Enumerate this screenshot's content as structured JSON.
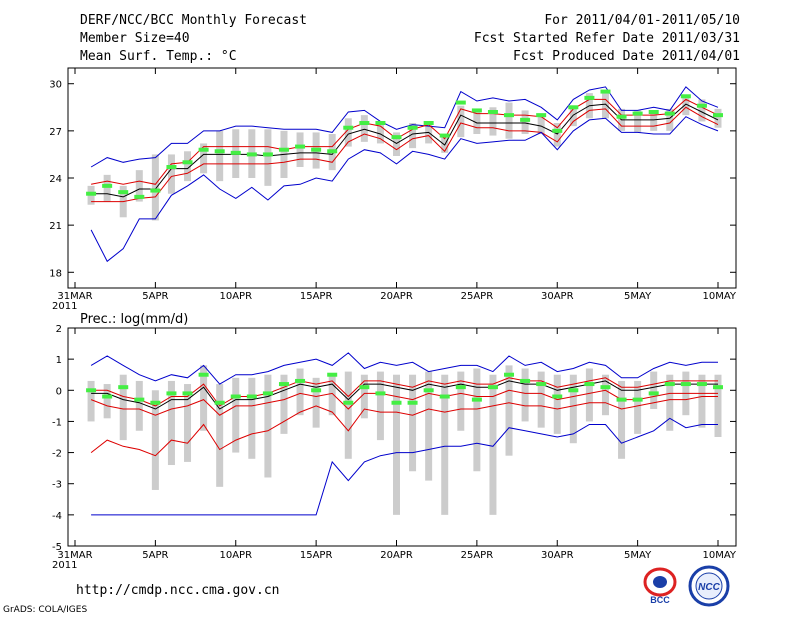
{
  "header": {
    "title": "DERF/NCC/BCC Monthly Forecast",
    "member_size": "Member Size=40",
    "variable": "Mean Surf. Temp.: °C",
    "period": "For 2011/04/01-2011/05/10",
    "started": "Fcst Started Refer Date 2011/03/31",
    "produced": "Fcst Produced Date 2011/04/01"
  },
  "footer": {
    "url": "http://cmdp.ncc.cma.gov.cn",
    "credit": "GrADS: COLA/IGES",
    "logo_bcc": "BCC",
    "logo_ncc": "NCC"
  },
  "chart_data": [
    {
      "type": "line",
      "title": "Mean Surf. Temp.: °C",
      "xlabel": "",
      "ylabel": "",
      "year_label": "2011",
      "ylim": [
        17,
        31
      ],
      "y_ticks": [
        18,
        21,
        24,
        27,
        30
      ],
      "x_tick_days": [
        0,
        5,
        10,
        15,
        20,
        25,
        30,
        35,
        40
      ],
      "x_tick_labels": [
        "31MAR",
        "5APR",
        "10APR",
        "15APR",
        "20APR",
        "25APR",
        "30APR",
        "5MAY",
        "10MAY"
      ],
      "days": [
        1,
        2,
        3,
        4,
        5,
        6,
        7,
        8,
        9,
        10,
        11,
        12,
        13,
        14,
        15,
        16,
        17,
        18,
        19,
        20,
        21,
        22,
        23,
        24,
        25,
        26,
        27,
        28,
        29,
        30,
        31,
        32,
        33,
        34,
        35,
        36,
        37,
        38,
        39,
        40
      ],
      "series": [
        {
          "name": "ensemble max",
          "color": "#0000cc",
          "values": [
            24.7,
            25.3,
            25,
            25.2,
            25.3,
            26.2,
            26.2,
            27,
            27,
            27.3,
            27.3,
            27.2,
            27.1,
            27.1,
            27.1,
            26.9,
            28.2,
            28.3,
            27.6,
            27.1,
            27.4,
            27.3,
            27.2,
            29.5,
            28.9,
            29.1,
            28.9,
            29,
            28.5,
            27.7,
            29,
            29.6,
            29.8,
            28.3,
            28.3,
            28.5,
            28.3,
            29.8,
            28.9,
            28.5
          ]
        },
        {
          "name": "upper spread",
          "color": "#dd0000",
          "values": [
            23.6,
            23.8,
            23.6,
            23.8,
            23.6,
            24.9,
            25,
            26,
            26,
            26,
            26,
            26,
            25.8,
            26,
            26,
            26,
            27.1,
            27.5,
            27.3,
            26.5,
            27.1,
            27.4,
            26.5,
            28.4,
            28.1,
            28.1,
            28,
            28,
            27.9,
            27.2,
            28.4,
            29,
            29,
            28,
            28,
            28,
            28.1,
            29,
            28.5,
            28
          ]
        },
        {
          "name": "ensemble mean",
          "color": "#000000",
          "values": [
            23,
            23,
            22.8,
            23.3,
            23.3,
            24.6,
            24.6,
            25.5,
            25.5,
            25.5,
            25.5,
            25.4,
            25.5,
            25.6,
            25.6,
            25.5,
            26.8,
            27.1,
            26.8,
            26.2,
            26.8,
            26.9,
            26.1,
            28,
            27.5,
            27.5,
            27.5,
            27.5,
            27.3,
            26.8,
            28,
            28.6,
            28.7,
            27.7,
            27.7,
            27.7,
            27.8,
            28.7,
            28.2,
            27.7
          ]
        },
        {
          "name": "lower spread",
          "color": "#dd0000",
          "values": [
            22.5,
            22.5,
            22.5,
            22.7,
            22.8,
            24.1,
            24.3,
            24.9,
            24.9,
            24.9,
            24.9,
            24.9,
            25,
            25.2,
            25.2,
            25,
            26.3,
            26.8,
            26.5,
            25.8,
            26.5,
            26.7,
            25.7,
            27.5,
            27.2,
            27.2,
            27,
            27,
            26.9,
            26.3,
            27.6,
            28.3,
            28.4,
            27.3,
            27.3,
            27.3,
            27.5,
            28.5,
            27.9,
            27.4
          ]
        },
        {
          "name": "ensemble min",
          "color": "#0000cc",
          "values": [
            20.7,
            18.7,
            19.5,
            21.4,
            21.4,
            22.9,
            23.5,
            24.2,
            23.3,
            22.7,
            23.4,
            22.6,
            23.5,
            23.6,
            24,
            23.8,
            25.2,
            25.8,
            25.6,
            24.9,
            25.7,
            25.5,
            25.2,
            26.5,
            26.2,
            26.3,
            26.4,
            26.4,
            26.9,
            25.8,
            27,
            27.7,
            27.8,
            26.9,
            26.9,
            26.8,
            26.8,
            27.9,
            27.4,
            27
          ]
        }
      ],
      "bars": {
        "name": "member spread",
        "color": "#cccccc",
        "low": [
          22.3,
          22.5,
          21.5,
          22.5,
          21.3,
          23,
          23.8,
          24.3,
          23.8,
          24,
          24,
          23.5,
          24,
          24.7,
          24.6,
          24.5,
          26,
          26.3,
          26.2,
          25.4,
          25.9,
          26.2,
          25.6,
          26.6,
          26.8,
          26.7,
          26.5,
          26.8,
          26.8,
          26,
          27.3,
          27.8,
          27.8,
          27,
          26.9,
          27,
          27,
          28,
          27.6,
          27.2
        ],
        "high": [
          23.5,
          24.2,
          23.5,
          24.5,
          25.5,
          25.5,
          25.7,
          26.2,
          27,
          27.1,
          27.1,
          27.1,
          27,
          26.9,
          26.9,
          26.8,
          27.8,
          28,
          27.4,
          26.9,
          27.5,
          27.6,
          26.8,
          28.6,
          28.4,
          28.5,
          28.8,
          28.3,
          28.1,
          27.5,
          28.5,
          29.4,
          29.4,
          28.4,
          28.3,
          28.3,
          28.4,
          29.3,
          29,
          28.4
        ]
      },
      "observed": {
        "name": "observed",
        "color": "#44ee44",
        "values": [
          23,
          23.5,
          23.1,
          22.8,
          23.2,
          24.7,
          25,
          25.8,
          25.7,
          25.6,
          25.5,
          25.5,
          25.8,
          26,
          25.8,
          25.7,
          27.2,
          27.5,
          27.5,
          26.6,
          27.2,
          27.5,
          26.7,
          28.8,
          28.3,
          28.2,
          28,
          27.7,
          28,
          27,
          28.5,
          29.1,
          29.5,
          27.9,
          28.1,
          28.2,
          28.1,
          29.2,
          28.6,
          28
        ]
      }
    },
    {
      "type": "line",
      "title": "Prec.: log(mm/d)",
      "xlabel": "",
      "ylabel": "",
      "year_label": "2011",
      "ylim": [
        -5,
        2
      ],
      "y_ticks": [
        -5,
        -4,
        -3,
        -2,
        -1,
        0,
        1,
        2
      ],
      "x_tick_days": [
        0,
        5,
        10,
        15,
        20,
        25,
        30,
        35,
        40
      ],
      "x_tick_labels": [
        "31MAR",
        "5APR",
        "10APR",
        "15APR",
        "20APR",
        "25APR",
        "30APR",
        "5MAY",
        "10MAY"
      ],
      "days": [
        1,
        2,
        3,
        4,
        5,
        6,
        7,
        8,
        9,
        10,
        11,
        12,
        13,
        14,
        15,
        16,
        17,
        18,
        19,
        20,
        21,
        22,
        23,
        24,
        25,
        26,
        27,
        28,
        29,
        30,
        31,
        32,
        33,
        34,
        35,
        36,
        37,
        38,
        39,
        40
      ],
      "series": [
        {
          "name": "ensemble max",
          "color": "#0000cc",
          "values": [
            0.8,
            1.1,
            0.8,
            0.5,
            0.3,
            0.5,
            0.4,
            0.8,
            0.2,
            0.5,
            0.5,
            0.6,
            0.8,
            0.9,
            1,
            0.8,
            1.2,
            0.7,
            0.9,
            0.8,
            0.9,
            0.6,
            0.7,
            0.8,
            0.8,
            0.6,
            1.1,
            0.8,
            0.9,
            0.6,
            0.7,
            0.9,
            0.8,
            0.4,
            0.4,
            0.7,
            0.9,
            0.8,
            0.9,
            0.9
          ]
        },
        {
          "name": "upper spread",
          "color": "#dd0000",
          "values": [
            0,
            0,
            -0.2,
            -0.3,
            -0.5,
            -0.2,
            -0.2,
            0.2,
            -0.5,
            -0.2,
            -0.2,
            -0.1,
            0.1,
            0.3,
            0.2,
            0.3,
            -0.2,
            0.3,
            0.3,
            0.2,
            0.1,
            0.3,
            0.2,
            0.3,
            0.2,
            0.2,
            0.4,
            0.3,
            0.3,
            0.1,
            0.2,
            0.3,
            0.4,
            0.1,
            0.1,
            0.2,
            0.3,
            0.3,
            0.3,
            0.3
          ]
        },
        {
          "name": "ensemble mean",
          "color": "#000000",
          "values": [
            -0.1,
            -0.1,
            -0.3,
            -0.4,
            -0.6,
            -0.3,
            -0.3,
            0.1,
            -0.6,
            -0.3,
            -0.3,
            -0.2,
            0,
            0.2,
            0.1,
            0.2,
            -0.3,
            0.2,
            0.2,
            0.1,
            0,
            0.2,
            0.1,
            0.2,
            0.1,
            0.1,
            0.3,
            0.2,
            0.2,
            0,
            0.1,
            0.2,
            0.3,
            0,
            0,
            0.1,
            0.2,
            0.2,
            0.2,
            0.2
          ]
        },
        {
          "name": "lower spread",
          "color": "#dd0000",
          "values": [
            -0.3,
            -0.5,
            -0.6,
            -0.6,
            -0.8,
            -0.6,
            -0.5,
            -0.3,
            -0.8,
            -0.5,
            -0.5,
            -0.4,
            -0.3,
            -0.1,
            -0.2,
            -0.1,
            -0.6,
            -0.1,
            -0.1,
            -0.2,
            -0.3,
            -0.1,
            -0.2,
            -0.1,
            -0.2,
            -0.2,
            0,
            -0.1,
            -0.1,
            -0.3,
            -0.2,
            -0.1,
            0,
            -0.3,
            -0.3,
            -0.2,
            -0.1,
            -0.1,
            -0.1,
            -0.1
          ]
        },
        {
          "name": "lower band",
          "color": "#dd0000",
          "values": [
            -2,
            -1.6,
            -1.8,
            -1.9,
            -2.1,
            -1.6,
            -1.7,
            -1.1,
            -1.9,
            -1.6,
            -1.4,
            -1.3,
            -1,
            -0.7,
            -0.5,
            -0.7,
            -1.3,
            -0.6,
            -0.7,
            -0.7,
            -0.8,
            -0.6,
            -0.7,
            -0.6,
            -0.6,
            -0.5,
            -0.4,
            -0.5,
            -0.5,
            -0.6,
            -0.5,
            -0.4,
            -0.4,
            -0.6,
            -0.5,
            -0.4,
            -0.3,
            -0.3,
            -0.2,
            -0.2
          ]
        },
        {
          "name": "ensemble min",
          "color": "#0000cc",
          "values": [
            -4,
            -4,
            -4,
            -4,
            -4,
            -4,
            -4,
            -4,
            -4,
            -4,
            -4,
            -4,
            -4,
            -4,
            -4,
            -2.3,
            -2.9,
            -2.3,
            -2.1,
            -2,
            -2,
            -1.9,
            -1.8,
            -1.8,
            -1.7,
            -1.8,
            -1.2,
            -1.3,
            -1.4,
            -1.5,
            -1.4,
            -1.1,
            -1.1,
            -1.7,
            -1.5,
            -1.3,
            -0.9,
            -1.2,
            -1.1,
            -1.1
          ]
        }
      ],
      "bars": {
        "name": "member spread",
        "color": "#cccccc",
        "low": [
          -1,
          -0.9,
          -1.6,
          -1.3,
          -3.2,
          -2.4,
          -2.3,
          -1.3,
          -3.1,
          -2,
          -2.2,
          -2.8,
          -1.4,
          -0.8,
          -1.2,
          -0.8,
          -2.2,
          -0.9,
          -1.6,
          -4,
          -2.6,
          -2.9,
          -4,
          -1.3,
          -2.6,
          -4,
          -2.1,
          -1,
          -1.2,
          -1.4,
          -1.7,
          -1,
          -0.8,
          -2.2,
          -1.4,
          -0.6,
          -1.3,
          -0.8,
          -1.2,
          -1.5
        ],
        "high": [
          0.3,
          0.2,
          0.5,
          0.3,
          0,
          0.3,
          0.2,
          0.8,
          0.2,
          0.4,
          0.4,
          0.5,
          0.5,
          0.7,
          0.4,
          0.5,
          0.6,
          0.5,
          0.6,
          0.5,
          0.5,
          0.6,
          0.5,
          0.6,
          0.7,
          0.5,
          0.8,
          0.7,
          0.6,
          0.5,
          0.5,
          0.7,
          0.5,
          0.3,
          0.3,
          0.6,
          0.5,
          0.6,
          0.5,
          0.5
        ]
      },
      "observed": {
        "name": "observed",
        "color": "#44ee44",
        "values": [
          0,
          -0.2,
          0.1,
          -0.3,
          -0.4,
          -0.1,
          -0.1,
          0.5,
          -0.4,
          -0.2,
          -0.2,
          -0.1,
          0.2,
          0.3,
          0,
          0.5,
          -0.4,
          0.1,
          -0.1,
          -0.4,
          -0.4,
          0,
          -0.2,
          0.1,
          -0.3,
          0.1,
          0.5,
          0.3,
          0.2,
          -0.2,
          0,
          0.2,
          0.1,
          -0.3,
          -0.3,
          -0.1,
          0.2,
          0.2,
          0.2,
          0.1
        ]
      }
    }
  ]
}
